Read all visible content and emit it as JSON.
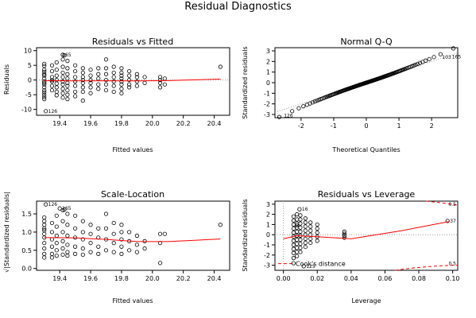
{
  "figure_title": "Residual Diagnostics",
  "chart_data": [
    {
      "type": "scatter",
      "title": "Residuals vs Fitted",
      "xlabel": "Fitted values",
      "ylabel": "Residuals",
      "xlim": [
        19.25,
        20.5
      ],
      "ylim": [
        -12,
        11
      ],
      "xticks": [
        "19.4",
        "19.6",
        "19.8",
        "20.0",
        "20.2",
        "20.4"
      ],
      "yticks": [
        "-10",
        "-5",
        "0",
        "5",
        "10"
      ],
      "reference_line": 0,
      "labeled_points": [
        {
          "label": "126",
          "x": 19.31,
          "y": -10.6
        },
        {
          "label": "165",
          "x": 19.4,
          "y": 8.5
        }
      ],
      "smooth_color": "#ff0000",
      "smooth": {
        "x": [
          19.3,
          19.5,
          19.7,
          19.9,
          20.1,
          20.3,
          20.44
        ],
        "y": [
          -0.2,
          -0.3,
          -0.25,
          -0.3,
          -0.2,
          0.1,
          0.3
        ]
      },
      "points": {
        "x": [
          19.3,
          19.3,
          19.3,
          19.3,
          19.3,
          19.3,
          19.3,
          19.3,
          19.3,
          19.3,
          19.3,
          19.3,
          19.3,
          19.3,
          19.3,
          19.3,
          19.35,
          19.35,
          19.35,
          19.35,
          19.35,
          19.35,
          19.35,
          19.38,
          19.38,
          19.38,
          19.38,
          19.38,
          19.38,
          19.38,
          19.38,
          19.42,
          19.42,
          19.42,
          19.42,
          19.42,
          19.42,
          19.42,
          19.42,
          19.42,
          19.45,
          19.45,
          19.45,
          19.45,
          19.45,
          19.45,
          19.45,
          19.45,
          19.45,
          19.5,
          19.5,
          19.5,
          19.5,
          19.5,
          19.5,
          19.5,
          19.55,
          19.55,
          19.55,
          19.55,
          19.55,
          19.55,
          19.55,
          19.55,
          19.6,
          19.6,
          19.6,
          19.6,
          19.6,
          19.6,
          19.65,
          19.65,
          19.65,
          19.65,
          19.65,
          19.7,
          19.7,
          19.7,
          19.7,
          19.7,
          19.7,
          19.75,
          19.75,
          19.75,
          19.75,
          19.75,
          19.75,
          19.8,
          19.8,
          19.8,
          19.8,
          19.8,
          19.8,
          19.8,
          19.8,
          19.85,
          19.85,
          19.85,
          19.85,
          19.85,
          19.9,
          19.9,
          19.9,
          19.9,
          19.95,
          19.95,
          20.05,
          20.05,
          20.05,
          20.05,
          20.08,
          20.08,
          20.44,
          19.43,
          19.42,
          19.31
        ],
        "y": [
          5.5,
          4.8,
          3.5,
          2.8,
          1.5,
          0.5,
          -0.5,
          -1.5,
          -2.5,
          -3.5,
          -4.2,
          -5,
          -5.8,
          -6.5,
          2,
          -1,
          5,
          3,
          1,
          -0.5,
          -2,
          -3.5,
          0,
          6,
          3.5,
          1.5,
          0,
          -1.2,
          -2.5,
          -4,
          -5.2,
          7,
          4.5,
          2.5,
          1,
          -0.5,
          -1.5,
          -3,
          -4.5,
          -6,
          6.5,
          4,
          2,
          0.5,
          -1,
          -2,
          -3.5,
          -5,
          -6.5,
          5,
          3,
          1,
          -0.5,
          -2,
          -4,
          -5.5,
          4,
          2.5,
          1,
          0,
          -1,
          -2.5,
          -4,
          -7,
          3.5,
          1.5,
          0,
          -1,
          -2.5,
          -4.5,
          4,
          2,
          0.5,
          -1.5,
          -3,
          7,
          4,
          2,
          0,
          -1.5,
          -3.5,
          4.5,
          2.5,
          1,
          -0.5,
          -2,
          -4,
          4,
          2.5,
          1.5,
          0.5,
          -0.5,
          -1.5,
          -3,
          -4.5,
          3,
          1.5,
          0,
          -1.5,
          -2.5,
          2,
          1,
          -0.5,
          -2,
          1,
          -1,
          1,
          0,
          -1,
          -2.5,
          0.5,
          -1.5,
          4.5,
          8.4,
          8.6,
          -10.6
        ]
      }
    },
    {
      "type": "scatter",
      "title": "Normal Q-Q",
      "xlabel": "Theoretical Quantiles",
      "ylabel": "Standardized residuals",
      "xlim": [
        -2.8,
        2.8
      ],
      "ylim": [
        -3.3,
        3.3
      ],
      "xticks": [
        "-2",
        "-1",
        "0",
        "1",
        "2"
      ],
      "yticks": [
        "-3",
        "-2",
        "-1",
        "0",
        "1",
        "2",
        "3"
      ],
      "reference_line": "y = x (dotted)",
      "labeled_points": [
        {
          "label": "126",
          "x": -2.6,
          "y": -3.1
        },
        {
          "label": "103",
          "x": 2.25,
          "y": 2.4
        },
        {
          "label": "165",
          "x": 2.55,
          "y": 2.45
        }
      ],
      "n_points": 130,
      "description_values": "points lie close to diagonal, slight heavy tails"
    },
    {
      "type": "scatter",
      "title": "Scale-Location",
      "xlabel": "Fitted values",
      "ylabel": "√|Standardized residuals|",
      "xlim": [
        19.25,
        20.5
      ],
      "ylim": [
        -0.05,
        1.85
      ],
      "xticks": [
        "19.4",
        "19.6",
        "19.8",
        "20.0",
        "20.2",
        "20.4"
      ],
      "yticks": [
        "0.0",
        "0.5",
        "1.0",
        "1.5"
      ],
      "labeled_points": [
        {
          "label": "126",
          "x": 19.31,
          "y": 1.76
        },
        {
          "label": "165",
          "x": 19.4,
          "y": 1.65
        }
      ],
      "smooth_color": "#ff0000",
      "smooth": {
        "x": [
          19.3,
          19.5,
          19.7,
          19.9,
          20.1,
          20.3,
          20.44
        ],
        "y": [
          0.85,
          0.84,
          0.8,
          0.74,
          0.74,
          0.78,
          0.81
        ]
      },
      "points": {
        "x": [
          19.3,
          19.3,
          19.3,
          19.3,
          19.3,
          19.3,
          19.3,
          19.3,
          19.3,
          19.3,
          19.3,
          19.35,
          19.35,
          19.35,
          19.35,
          19.35,
          19.35,
          19.38,
          19.38,
          19.38,
          19.38,
          19.38,
          19.38,
          19.42,
          19.42,
          19.42,
          19.42,
          19.42,
          19.42,
          19.45,
          19.45,
          19.45,
          19.45,
          19.45,
          19.45,
          19.5,
          19.5,
          19.5,
          19.5,
          19.5,
          19.55,
          19.55,
          19.55,
          19.55,
          19.55,
          19.6,
          19.6,
          19.6,
          19.6,
          19.65,
          19.65,
          19.65,
          19.65,
          19.7,
          19.7,
          19.7,
          19.7,
          19.75,
          19.75,
          19.75,
          19.75,
          19.8,
          19.8,
          19.8,
          19.8,
          19.8,
          19.85,
          19.85,
          19.85,
          19.9,
          19.9,
          19.9,
          19.95,
          19.95,
          20.05,
          20.05,
          20.05,
          20.08,
          20.44,
          19.31,
          19.4,
          19.43
        ],
        "y": [
          1.4,
          1.3,
          1.2,
          1.05,
          0.95,
          0.85,
          0.7,
          0.55,
          0.4,
          0.3,
          1.1,
          1.25,
          1.0,
          0.8,
          0.6,
          0.4,
          0.3,
          1.45,
          1.15,
          0.9,
          0.7,
          0.5,
          0.35,
          1.6,
          1.3,
          1.0,
          0.75,
          0.55,
          0.38,
          1.5,
          1.2,
          0.9,
          0.65,
          0.45,
          0.35,
          1.45,
          1.1,
          0.85,
          0.6,
          0.4,
          1.3,
          1.0,
          0.8,
          0.55,
          0.38,
          1.2,
          0.95,
          0.7,
          0.45,
          1.1,
          0.85,
          0.6,
          0.4,
          1.5,
          1.1,
          0.8,
          0.5,
          1.25,
          0.95,
          0.7,
          0.45,
          1.2,
          1.0,
          0.8,
          0.6,
          0.4,
          1.0,
          0.75,
          0.5,
          0.9,
          0.65,
          0.45,
          0.75,
          0.55,
          0.95,
          0.7,
          0.15,
          0.95,
          1.2,
          1.76,
          1.65,
          1.62
        ]
      }
    },
    {
      "type": "scatter",
      "title": "Residuals vs Leverage",
      "xlabel": "Leverage",
      "ylabel": "Standardized residuals",
      "xlim": [
        -0.005,
        0.103
      ],
      "ylim": [
        -3.5,
        3.3
      ],
      "xticks": [
        "0.00",
        "0.02",
        "0.04",
        "0.06",
        "0.08",
        "0.10"
      ],
      "yticks": [
        "-3",
        "-2",
        "-1",
        "0",
        "1",
        "2",
        "3"
      ],
      "legend": "Cook's distance",
      "cook_levels": [
        "0.5",
        "0.5"
      ],
      "labeled_points": [
        {
          "label": "16",
          "x": 0.0095,
          "y": 2.5
        },
        {
          "label": "37",
          "x": 0.097,
          "y": 1.35
        },
        {
          "label": "125",
          "x": 0.012,
          "y": -3.1
        }
      ],
      "smooth_color": "#ff0000",
      "smooth": {
        "x": [
          0.0,
          0.008,
          0.02,
          0.04,
          0.07,
          0.098
        ],
        "y": [
          -0.4,
          -0.1,
          -0.2,
          -0.4,
          0.4,
          1.3
        ]
      },
      "points": {
        "x": [
          0.006,
          0.006,
          0.006,
          0.006,
          0.006,
          0.006,
          0.006,
          0.006,
          0.006,
          0.006,
          0.006,
          0.006,
          0.008,
          0.008,
          0.008,
          0.008,
          0.008,
          0.008,
          0.008,
          0.008,
          0.008,
          0.008,
          0.008,
          0.008,
          0.01,
          0.01,
          0.01,
          0.01,
          0.01,
          0.01,
          0.01,
          0.01,
          0.01,
          0.01,
          0.013,
          0.013,
          0.013,
          0.013,
          0.013,
          0.013,
          0.013,
          0.013,
          0.016,
          0.016,
          0.016,
          0.016,
          0.016,
          0.016,
          0.02,
          0.02,
          0.02,
          0.02,
          0.02,
          0.036,
          0.036,
          0.036,
          0.036,
          0.097,
          0.0095,
          0.012
        ],
        "y": [
          1.8,
          1.4,
          1.0,
          0.6,
          0.2,
          -0.2,
          -0.6,
          -1.0,
          -1.4,
          -1.8,
          -2.3,
          -2.8,
          2.0,
          1.5,
          1.1,
          0.7,
          0.3,
          -0.1,
          -0.5,
          -0.9,
          -1.3,
          -1.7,
          -2.1,
          0.9,
          1.9,
          1.5,
          1.1,
          0.7,
          0.3,
          -0.1,
          -0.5,
          -0.9,
          -1.3,
          -1.7,
          1.6,
          1.2,
          0.8,
          0.4,
          0.0,
          -0.4,
          -0.8,
          -1.2,
          1.2,
          0.8,
          0.4,
          0.0,
          -0.4,
          -0.8,
          1.0,
          0.6,
          0.2,
          -0.2,
          -0.6,
          0.3,
          0.1,
          -0.1,
          -0.3,
          1.35,
          2.5,
          -3.1
        ]
      }
    }
  ]
}
